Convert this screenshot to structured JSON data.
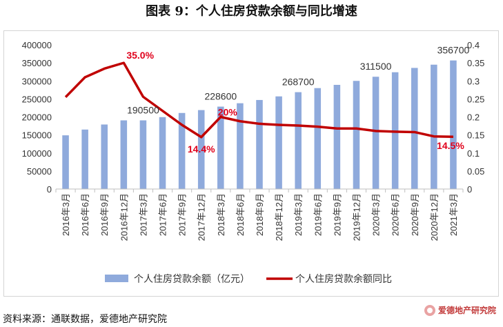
{
  "title": "图表 9：个人住房贷款余额与同比增速",
  "source": "资料来源：通联数据，爱德地产研究院",
  "brand": "爱德地产研究院",
  "chart_data": {
    "type": "bar+line",
    "categories": [
      "2016年3月",
      "2016年6月",
      "2016年9月",
      "2016年12月",
      "2017年3月",
      "2017年6月",
      "2017年9月",
      "2017年12月",
      "2018年3月",
      "2018年6月",
      "2018年9月",
      "2018年12月",
      "2019年3月",
      "2019年6月",
      "2019年9月",
      "2019年12月",
      "2020年3月",
      "2020年6月",
      "2020年9月",
      "2020年12月",
      "2021年3月"
    ],
    "series": [
      {
        "name": "个人住房贷款余额（亿元）",
        "type": "bar",
        "axis": "left",
        "color": "#8faadc",
        "values": [
          149000,
          165000,
          179000,
          190500,
          190500,
          199500,
          211000,
          219000,
          228600,
          238000,
          247000,
          257000,
          268700,
          280000,
          289000,
          300000,
          311500,
          324000,
          336000,
          345000,
          356700
        ]
      },
      {
        "name": "个人住房贷款余额同比",
        "type": "line",
        "axis": "right",
        "color": "#c00000",
        "values": [
          0.255,
          0.31,
          0.334,
          0.35,
          0.256,
          0.217,
          0.178,
          0.144,
          0.2,
          0.188,
          0.181,
          0.178,
          0.176,
          0.173,
          0.168,
          0.168,
          0.161,
          0.159,
          0.158,
          0.146,
          0.145
        ]
      }
    ],
    "left_axis": {
      "ylim": [
        0,
        400000
      ],
      "ticks": [
        "0",
        "50000",
        "100000",
        "150000",
        "200000",
        "250000",
        "300000",
        "350000",
        "400000"
      ]
    },
    "right_axis": {
      "ylim": [
        0,
        0.4
      ],
      "ticks": [
        "0",
        "0.05",
        "0.1",
        "0.15",
        "0.2",
        "0.25",
        "0.3",
        "0.35",
        "0.4"
      ]
    },
    "bar_labels": [
      {
        "index": 4,
        "text": "190500"
      },
      {
        "index": 8,
        "text": "228600"
      },
      {
        "index": 12,
        "text": "268700"
      },
      {
        "index": 16,
        "text": "311500"
      },
      {
        "index": 20,
        "text": "356700"
      }
    ],
    "line_labels": [
      {
        "index": 3,
        "text": "35.0%"
      },
      {
        "index": 7,
        "text": "14.4%"
      },
      {
        "index": 8,
        "text": "20%"
      },
      {
        "index": 20,
        "text": "14.5%"
      }
    ],
    "legend_position": "bottom",
    "grid": false
  }
}
